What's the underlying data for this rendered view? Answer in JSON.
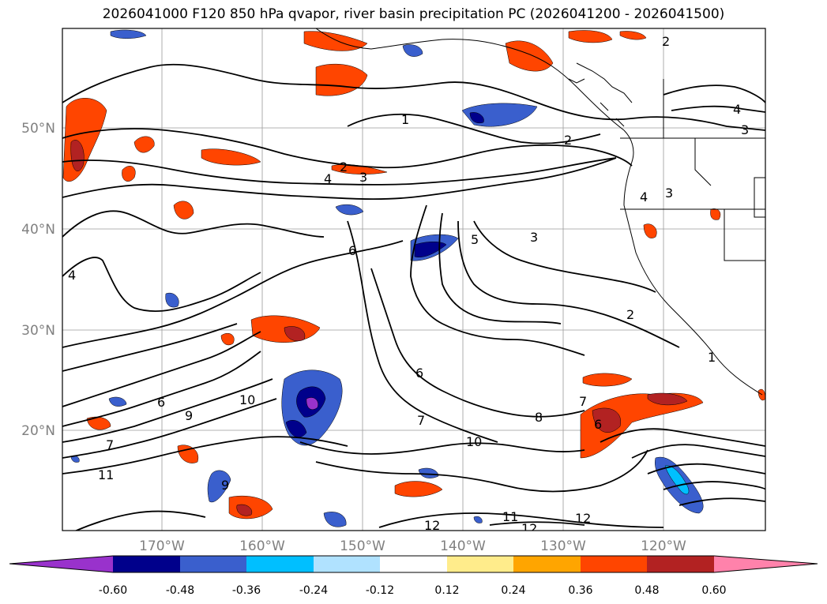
{
  "title": "2026041000 F120 850 hPa qvapor, river basin precipitation PC (2026041200 - 2026041500)",
  "lat_labels": [
    "50°N",
    "40°N",
    "30°N",
    "20°N"
  ],
  "lon_labels": [
    "170°W",
    "160°W",
    "150°W",
    "140°W",
    "130°W",
    "120°W"
  ],
  "colorbar": {
    "ticks": [
      "-0.60",
      "-0.48",
      "-0.36",
      "-0.24",
      "-0.12",
      "0.12",
      "0.24",
      "0.36",
      "0.48",
      "0.60"
    ],
    "colors": [
      "#9932cc",
      "#00008b",
      "#3a5fcd",
      "#00bfff",
      "#b0e2ff",
      "#ffffff",
      "#ffec8b",
      "#ffa500",
      "#ff4500",
      "#b22222",
      "#ff82ab"
    ]
  },
  "contour_labels": [
    {
      "text": "1"
    },
    {
      "text": "2"
    },
    {
      "text": "2"
    },
    {
      "text": "2"
    },
    {
      "text": "3"
    },
    {
      "text": "4"
    },
    {
      "text": "3"
    },
    {
      "text": "4"
    },
    {
      "text": "3"
    },
    {
      "text": "5"
    },
    {
      "text": "3"
    },
    {
      "text": "2"
    },
    {
      "text": "6"
    },
    {
      "text": "6"
    },
    {
      "text": "7"
    },
    {
      "text": "8"
    },
    {
      "text": "7"
    },
    {
      "text": "6"
    },
    {
      "text": "10"
    },
    {
      "text": "9"
    },
    {
      "text": "6"
    },
    {
      "text": "7"
    },
    {
      "text": "11"
    },
    {
      "text": "10"
    },
    {
      "text": "9"
    },
    {
      "text": "12"
    },
    {
      "text": "11"
    },
    {
      "text": "12"
    },
    {
      "text": "12"
    },
    {
      "text": "1"
    },
    {
      "text": "4"
    },
    {
      "text": "4"
    }
  ]
}
